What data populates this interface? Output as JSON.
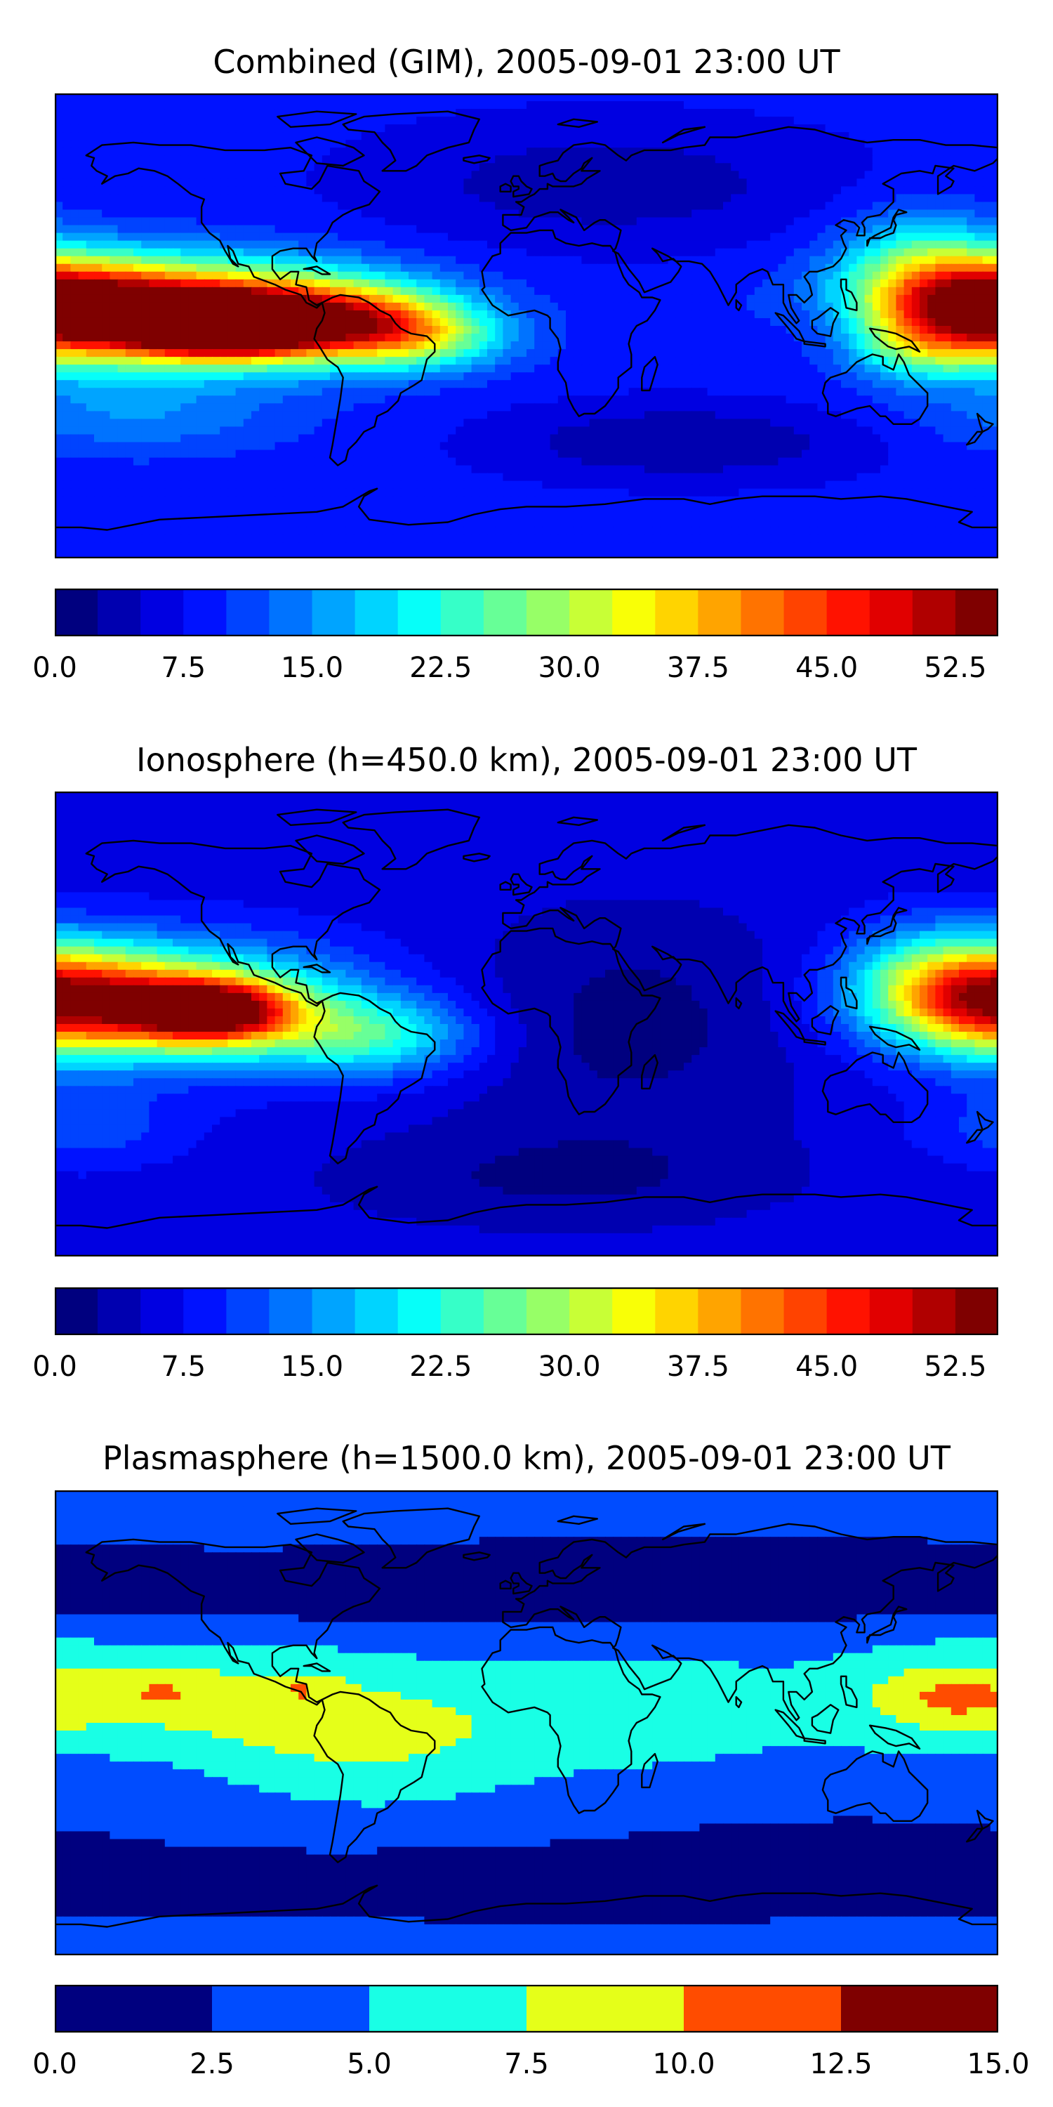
{
  "colormap": {
    "name": "jet",
    "stops": [
      "#00007f",
      "#0000ff",
      "#007fff",
      "#00ffff",
      "#7fff7f",
      "#ffff00",
      "#ff7f00",
      "#ff0000",
      "#7f0000"
    ]
  },
  "chart_data": [
    {
      "type": "heatmap",
      "title": "Combined (GIM), 2005-09-01 23:00 UT",
      "xlabel": "",
      "ylabel": "",
      "grid": false,
      "projection": "plate-carree world map",
      "x_range_deg": [
        -180,
        180
      ],
      "y_range_deg": [
        -90,
        90
      ],
      "levels": [
        0,
        2.5,
        5,
        7.5,
        10,
        12.5,
        15,
        17.5,
        20,
        22.5,
        25,
        27.5,
        30,
        32.5,
        35,
        37.5,
        40,
        42.5,
        45,
        47.5,
        50,
        52.5,
        55
      ],
      "colorbar_ticks": [
        "0.0",
        "7.5",
        "15.0",
        "22.5",
        "30.0",
        "37.5",
        "45.0",
        "52.5"
      ],
      "colorbar_range": [
        0,
        55
      ],
      "background_value": 8.5,
      "sources": [
        {
          "lon": -140,
          "lat": 5,
          "value": 32,
          "rlon": 80,
          "rlat": 20
        },
        {
          "lon": -115,
          "lat": 0,
          "value": 42,
          "rlon": 30,
          "rlat": 10
        },
        {
          "lon": -100,
          "lat": 3,
          "value": 20,
          "rlon": 55,
          "rlat": 16
        },
        {
          "lon": -60,
          "lat": 0,
          "value": 18,
          "rlon": 35,
          "rlat": 14
        },
        {
          "lon": -35,
          "lat": -5,
          "value": 10,
          "rlon": 30,
          "rlat": 12
        },
        {
          "lon": 178,
          "lat": 8,
          "value": 31,
          "rlon": 45,
          "rlat": 18
        },
        {
          "lon": 150,
          "lat": 25,
          "value": 12,
          "rlon": 30,
          "rlat": 20
        },
        {
          "lon": 150,
          "lat": -10,
          "value": 9,
          "rlon": 25,
          "rlat": 12
        },
        {
          "lon": -150,
          "lat": -35,
          "value": 6,
          "rlon": 60,
          "rlat": 15
        },
        {
          "lon": 30,
          "lat": 55,
          "value": -5,
          "rlon": 90,
          "rlat": 25
        },
        {
          "lon": 60,
          "lat": -45,
          "value": -6,
          "rlon": 70,
          "rlat": 15
        },
        {
          "lon": 115,
          "lat": 0,
          "value": -4,
          "rlon": 25,
          "rlat": 15
        }
      ]
    },
    {
      "type": "heatmap",
      "title": "Ionosphere  (h=450.0 km), 2005-09-01 23:00 UT",
      "xlabel": "",
      "ylabel": "",
      "grid": false,
      "projection": "plate-carree world map",
      "x_range_deg": [
        -180,
        180
      ],
      "y_range_deg": [
        -90,
        90
      ],
      "levels": [
        0,
        2.5,
        5,
        7.5,
        10,
        12.5,
        15,
        17.5,
        20,
        22.5,
        25,
        27.5,
        30,
        32.5,
        35,
        37.5,
        40,
        42.5,
        45,
        47.5,
        50,
        52.5,
        55
      ],
      "colorbar_ticks": [
        "0.0",
        "7.5",
        "15.0",
        "22.5",
        "30.0",
        "37.5",
        "45.0",
        "52.5"
      ],
      "colorbar_range": [
        0,
        55
      ],
      "background_value": 6.5,
      "sources": [
        {
          "lon": -140,
          "lat": 8,
          "value": 26,
          "rlon": 70,
          "rlat": 22
        },
        {
          "lon": -120,
          "lat": 5,
          "value": 36,
          "rlon": 30,
          "rlat": 12
        },
        {
          "lon": -60,
          "lat": -5,
          "value": 15,
          "rlon": 40,
          "rlat": 15
        },
        {
          "lon": 178,
          "lat": 10,
          "value": 30,
          "rlon": 40,
          "rlat": 20
        },
        {
          "lon": 150,
          "lat": 20,
          "value": 8,
          "rlon": 30,
          "rlat": 20
        },
        {
          "lon": 40,
          "lat": 0,
          "value": -5,
          "rlon": 70,
          "rlat": 45
        },
        {
          "lon": 10,
          "lat": -60,
          "value": -4,
          "rlon": 90,
          "rlat": 20
        },
        {
          "lon": -170,
          "lat": -40,
          "value": 5,
          "rlon": 40,
          "rlat": 15
        }
      ]
    },
    {
      "type": "heatmap",
      "title": "Plasmasphere (h=1500.0 km), 2005-09-01 23:00 UT",
      "xlabel": "",
      "ylabel": "",
      "grid": false,
      "projection": "plate-carree world map",
      "x_range_deg": [
        -180,
        180
      ],
      "y_range_deg": [
        -90,
        90
      ],
      "levels": [
        0,
        2.5,
        5,
        7.5,
        10,
        12.5,
        15
      ],
      "colorbar_ticks": [
        "0.0",
        "2.5",
        "5.0",
        "7.5",
        "10.0",
        "12.5",
        "15.0"
      ],
      "colorbar_range": [
        0,
        15
      ],
      "background_value": 3.2,
      "sources": [
        {
          "lon": -120,
          "lat": 10,
          "value": 4.5,
          "rlon": 70,
          "rlat": 22
        },
        {
          "lon": -60,
          "lat": -10,
          "value": 3.5,
          "rlon": 60,
          "rlat": 25
        },
        {
          "lon": 40,
          "lat": 5,
          "value": 3.5,
          "rlon": 80,
          "rlat": 25
        },
        {
          "lon": 160,
          "lat": 10,
          "value": 4.5,
          "rlon": 45,
          "rlat": 20
        },
        {
          "lon": -140,
          "lat": 12,
          "value": 2.0,
          "rlon": 15,
          "rlat": 6
        },
        {
          "lon": -85,
          "lat": 13,
          "value": 2.0,
          "rlon": 12,
          "rlat": 5
        },
        {
          "lon": 165,
          "lat": 10,
          "value": 2.5,
          "rlon": 15,
          "rlat": 6
        },
        {
          "lon": -60,
          "lat": 52,
          "value": -3,
          "rlon": 140,
          "rlat": 12
        },
        {
          "lon": 80,
          "lat": 55,
          "value": -3,
          "rlon": 120,
          "rlat": 14
        },
        {
          "lon": -30,
          "lat": -62,
          "value": -3,
          "rlon": 150,
          "rlat": 12
        },
        {
          "lon": 120,
          "lat": -55,
          "value": -3,
          "rlon": 80,
          "rlat": 15
        }
      ]
    }
  ],
  "coastline_icon": "world-coastlines"
}
